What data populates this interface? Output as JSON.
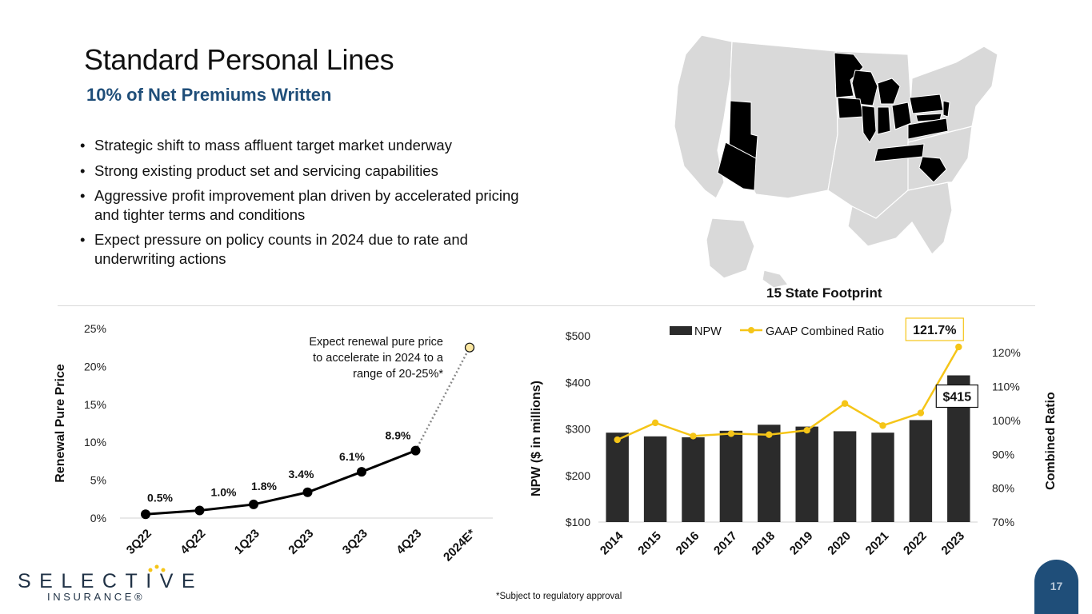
{
  "slide": {
    "title": "Standard Personal Lines",
    "subtitle": "10% of Net Premiums Written",
    "bullets": [
      "Strategic shift to mass affluent target market underway",
      "Strong existing product set and servicing capabilities",
      "Aggressive profit improvement plan driven by accelerated pricing and tighter terms and conditions",
      "Expect pressure on policy counts in 2024 due to rate and underwriting actions"
    ],
    "map_caption": "15 State Footprint",
    "footnote": "*Subject to regulatory approval",
    "page_number": "17"
  },
  "logo": {
    "name": "SELECTIVE",
    "tagline": "INSURANCE®"
  },
  "colors": {
    "subtitle": "#1f4e79",
    "bar": "#2b2b2b",
    "ratio_line": "#f5c518",
    "footprint_state": "#000000",
    "other_state": "#d9d9d9",
    "page_badge": "#1f4e79"
  },
  "chart_data": [
    {
      "type": "line",
      "ylabel": "Renewal Pure Price",
      "categories": [
        "3Q22",
        "4Q22",
        "1Q23",
        "2Q23",
        "3Q23",
        "4Q23",
        "2024E*"
      ],
      "values": [
        0.5,
        1.0,
        1.8,
        3.4,
        6.1,
        8.9,
        null
      ],
      "labels": [
        "0.5%",
        "1.0%",
        "1.8%",
        "3.4%",
        "6.1%",
        "8.9%",
        ""
      ],
      "projection": {
        "from": 8.9,
        "to": 22.5
      },
      "annotation": "Expect renewal pure price to accelerate in 2024 to a range of 20-25%*",
      "yticks": [
        "0%",
        "5%",
        "10%",
        "15%",
        "20%",
        "25%"
      ],
      "ylim": [
        0,
        25
      ],
      "grid": false
    },
    {
      "type": "bar",
      "categories": [
        "2014",
        "2015",
        "2016",
        "2017",
        "2018",
        "2019",
        "2020",
        "2021",
        "2022",
        "2023"
      ],
      "ylabel": "NPW ($ in millions)",
      "y2label": "Combined Ratio",
      "legend": [
        "NPW",
        "GAAP Combined Ratio"
      ],
      "legend_position": "top",
      "series": [
        {
          "name": "NPW",
          "values": [
            292,
            284,
            282,
            296,
            309,
            305,
            295,
            292,
            319,
            415
          ]
        },
        {
          "name": "GAAP Combined Ratio",
          "values": [
            94.3,
            99.3,
            95.4,
            96.1,
            95.8,
            97.1,
            105.0,
            98.5,
            102.2,
            121.7
          ]
        }
      ],
      "yticks": [
        "$100",
        "$200",
        "$300",
        "$400",
        "$500"
      ],
      "ylim": [
        100,
        500
      ],
      "y2ticks": [
        "70%",
        "80%",
        "90%",
        "100%",
        "110%",
        "120%"
      ],
      "y2lim": [
        70,
        125
      ],
      "callouts": {
        "npw_last": "$415",
        "ratio_last": "121.7%"
      },
      "grid": false
    }
  ]
}
